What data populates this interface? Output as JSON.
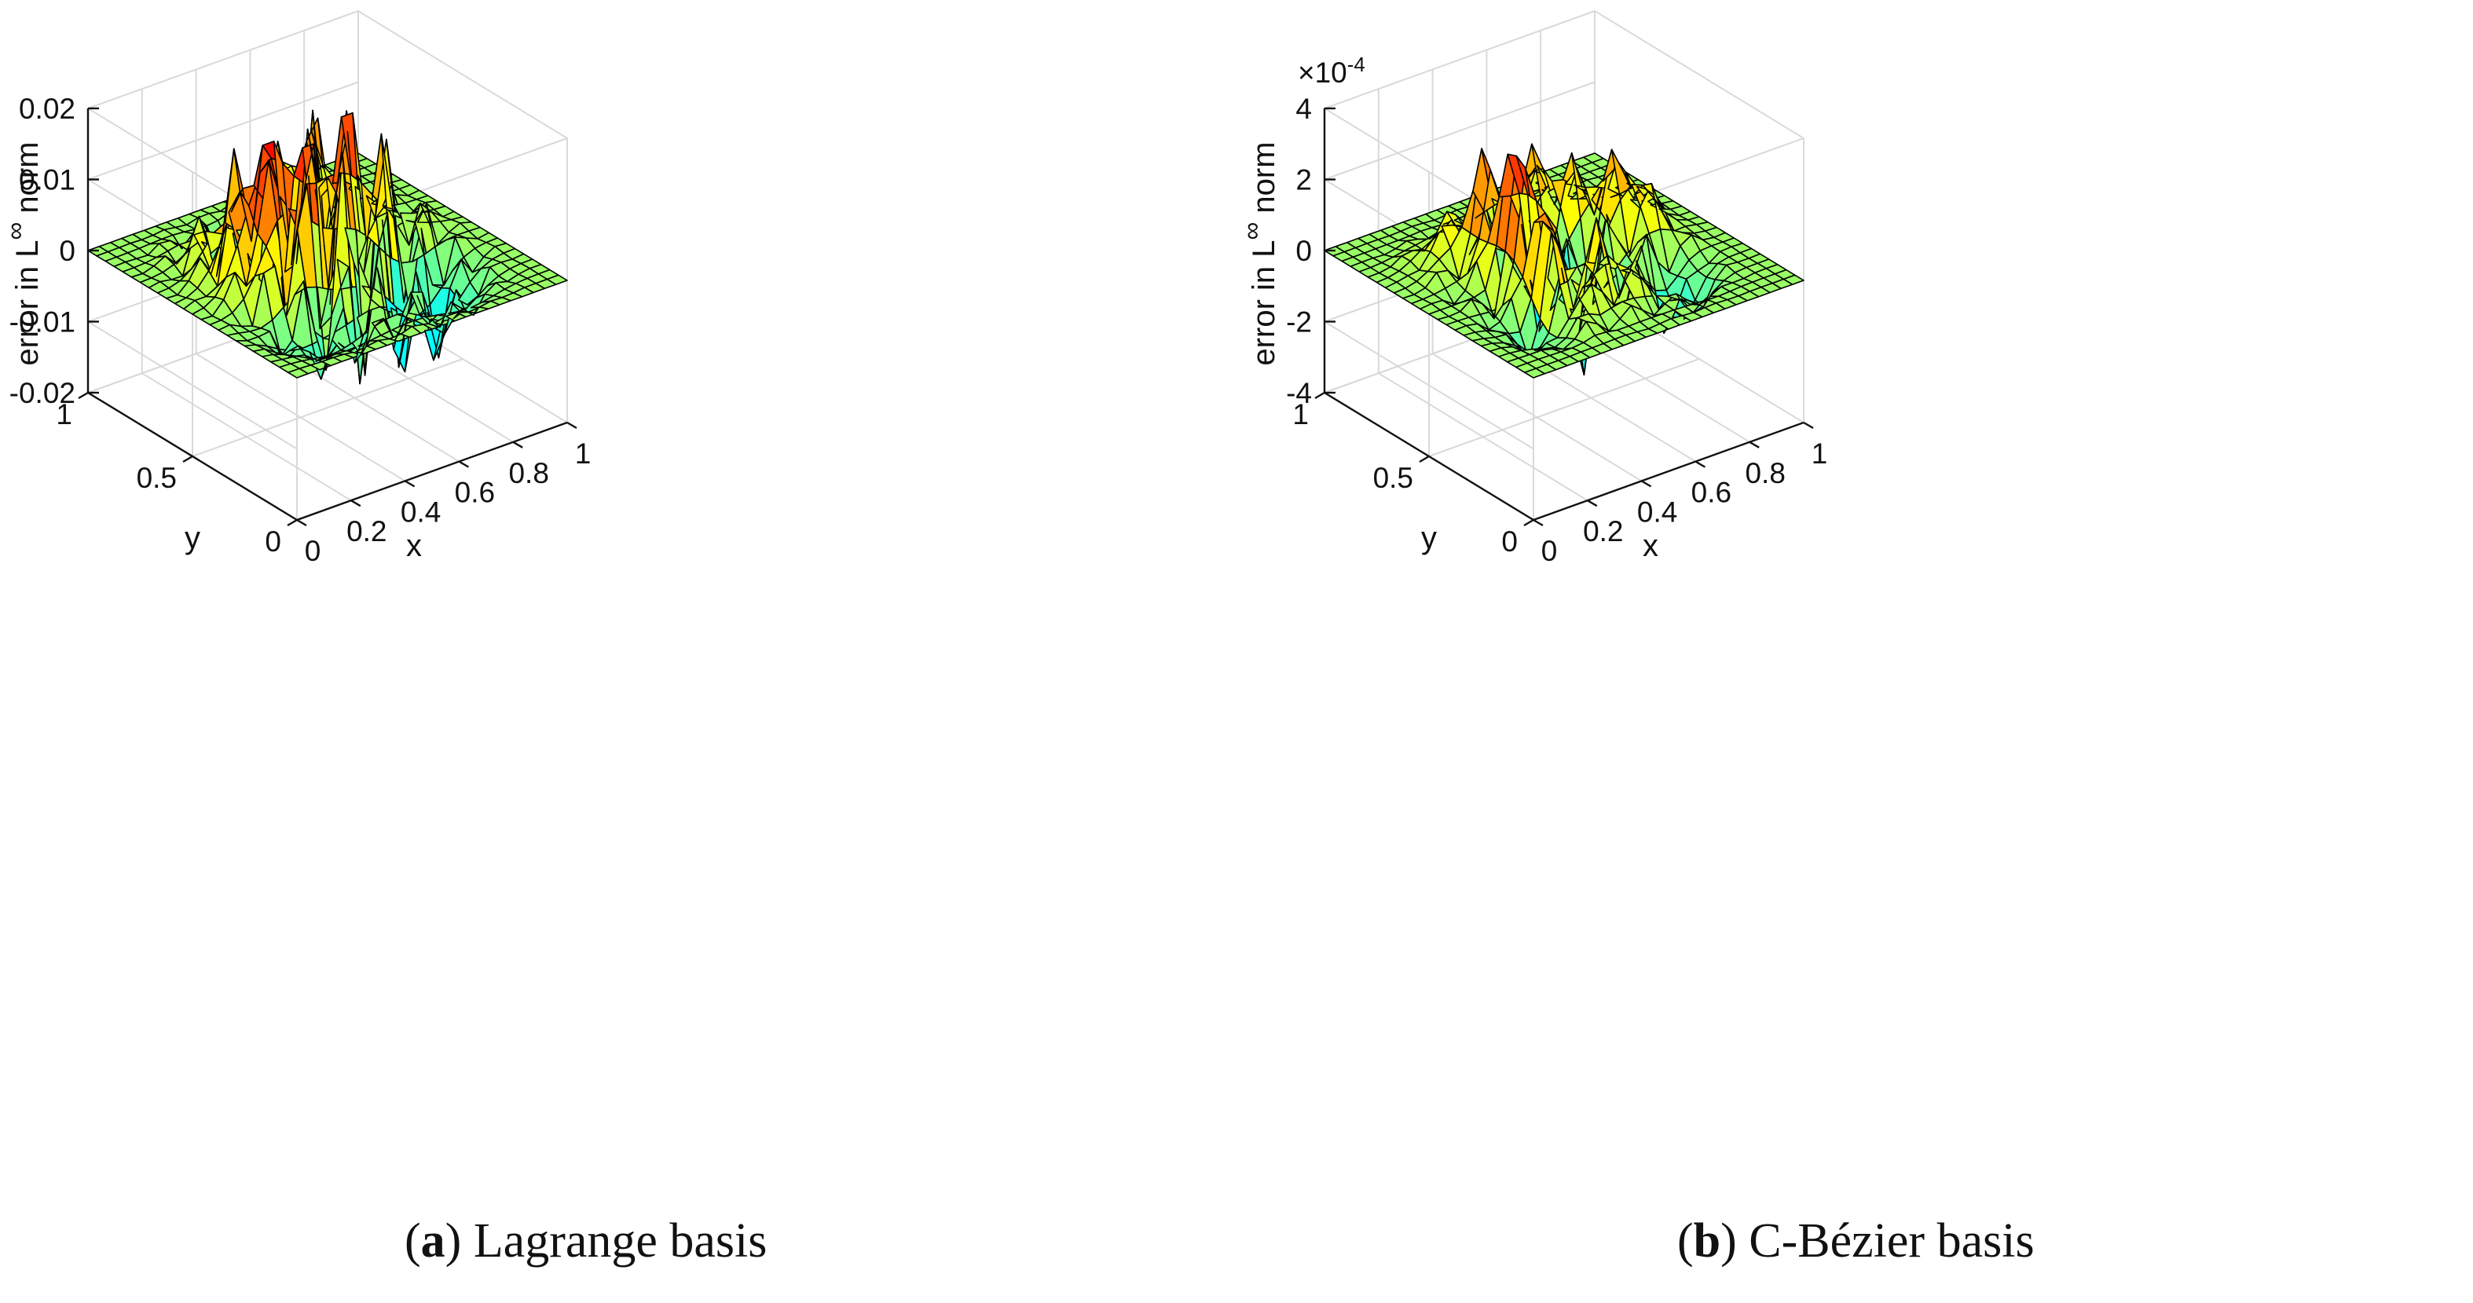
{
  "captions": [
    {
      "letter": "a",
      "text": "Lagrange basis"
    },
    {
      "letter": "b",
      "text": "C-Bézier basis"
    }
  ],
  "colors": {
    "grid": "#d9d9d9",
    "axis": "#111111",
    "edge": "#000000",
    "colormap": "jet"
  },
  "chart_data": [
    {
      "type": "surface",
      "title": "",
      "caption": "(a) Lagrange basis",
      "xlabel": "x",
      "ylabel": "y",
      "zlabel_main": "error in L",
      "zlabel_sup": "∞",
      "zlabel_tail": " norm",
      "xlim": [
        0,
        1
      ],
      "ylim": [
        0,
        1
      ],
      "zlim": [
        -0.02,
        0.02
      ],
      "x_ticks": [
        "0",
        "0.2",
        "0.4",
        "0.6",
        "0.8",
        "1"
      ],
      "y_ticks": [
        "0",
        "0.5",
        "1"
      ],
      "z_ticks": [
        "-0.02",
        "-0.01",
        "0",
        "0.01",
        "0.02"
      ],
      "z_exponent": "",
      "grid": true,
      "mesh_resolution": 24,
      "approx_components": [
        {
          "cx": 0.25,
          "cy": 0.5,
          "amp": 0.015,
          "sx": 0.09,
          "sy": 0.2
        },
        {
          "cx": 0.5,
          "cy": 0.5,
          "amp": 0.011,
          "sx": 0.22,
          "sy": 0.08
        },
        {
          "cx": 0.6,
          "cy": 0.8,
          "amp": 0.013,
          "sx": 0.12,
          "sy": 0.14
        },
        {
          "cx": 0.72,
          "cy": 0.25,
          "amp": -0.011,
          "sx": 0.1,
          "sy": 0.14
        },
        {
          "cx": 0.42,
          "cy": 0.72,
          "amp": -0.012,
          "sx": 0.1,
          "sy": 0.12
        },
        {
          "cx": 0.22,
          "cy": 0.22,
          "amp": -0.013,
          "sx": 0.12,
          "sy": 0.12
        }
      ],
      "ripple": {
        "amp": 0.004,
        "kx": 14,
        "ky": 12
      }
    },
    {
      "type": "surface",
      "title": "",
      "caption": "(b) C-Bézier basis",
      "xlabel": "x",
      "ylabel": "y",
      "zlabel_main": "error in L",
      "zlabel_sup": "∞",
      "zlabel_tail": " norm",
      "xlim": [
        0,
        1
      ],
      "ylim": [
        0,
        1
      ],
      "zlim": [
        -4,
        4
      ],
      "x_ticks": [
        "0",
        "0.2",
        "0.4",
        "0.6",
        "0.8",
        "1"
      ],
      "y_ticks": [
        "0",
        "0.5",
        "1"
      ],
      "z_ticks": [
        "-4",
        "-2",
        "0",
        "2",
        "4"
      ],
      "z_exponent_base": "×10",
      "z_exponent_power": "-4",
      "grid": true,
      "mesh_resolution": 24,
      "approx_components": [
        {
          "cx": 0.3,
          "cy": 0.45,
          "amp": 4.2,
          "sx": 0.035,
          "sy": 0.18
        },
        {
          "cx": 0.58,
          "cy": 0.72,
          "amp": 2.0,
          "sx": 0.08,
          "sy": 0.1
        },
        {
          "cx": 0.78,
          "cy": 0.55,
          "amp": 2.3,
          "sx": 0.08,
          "sy": 0.1
        },
        {
          "cx": 0.45,
          "cy": 0.28,
          "amp": 1.5,
          "sx": 0.1,
          "sy": 0.08
        },
        {
          "cx": 0.2,
          "cy": 0.72,
          "amp": 1.3,
          "sx": 0.08,
          "sy": 0.08
        },
        {
          "cx": 0.5,
          "cy": 0.5,
          "amp": -1.7,
          "sx": 0.08,
          "sy": 0.1
        },
        {
          "cx": 0.75,
          "cy": 0.25,
          "amp": -2.2,
          "sx": 0.06,
          "sy": 0.08
        },
        {
          "cx": 0.22,
          "cy": 0.25,
          "amp": -1.6,
          "sx": 0.1,
          "sy": 0.08
        }
      ],
      "ripple": {
        "amp": 0.35,
        "kx": 12,
        "ky": 12
      }
    }
  ]
}
